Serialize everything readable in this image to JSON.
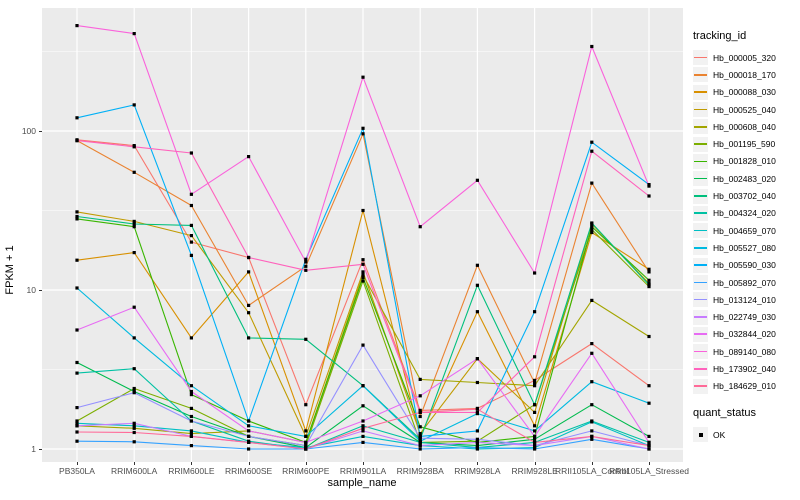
{
  "chart_data": {
    "type": "line",
    "title": "",
    "xlabel": "sample_name",
    "ylabel": "FPKM + 1",
    "y_scale": "log10",
    "y_ticks": [
      1,
      10,
      100
    ],
    "ylim": [
      0.92,
      580
    ],
    "grid": "major+minor-white-on-grey",
    "legend_position": "right",
    "point_shape": "small-black-square",
    "categories": [
      "PB350LA",
      "RRIM600LA",
      "RRIM600LE",
      "RRIM600SE",
      "RRIM600PE",
      "RRIM901LA",
      "RRIM928BA",
      "RRIM928LA",
      "RRIM928LE",
      "RRII105LA_Control",
      "RRII105LA_Stressed"
    ],
    "series": [
      {
        "name": "Hb_000005_320",
        "color": "#F8766D",
        "values": [
          88,
          81,
          20,
          16,
          1.9,
          15.5,
          1.75,
          1.8,
          2.7,
          4.6,
          2.5
        ]
      },
      {
        "name": "Hb_000018_170",
        "color": "#EA8331",
        "values": [
          87,
          55,
          34,
          8,
          14.1,
          96,
          1.6,
          14.3,
          2.6,
          47,
          13
        ]
      },
      {
        "name": "Hb_000088_030",
        "color": "#D89000",
        "values": [
          15.4,
          17.2,
          5,
          13,
          1.3,
          31.6,
          1.2,
          7.3,
          1.4,
          23,
          13.5
        ]
      },
      {
        "name": "Hb_000525_040",
        "color": "#C09B00",
        "values": [
          31,
          27,
          22,
          7.2,
          1.2,
          13,
          1.25,
          3.7,
          1.7,
          26,
          11
        ]
      },
      {
        "name": "Hb_000608_040",
        "color": "#A3A500",
        "values": [
          1.4,
          1.35,
          1.25,
          1.3,
          1.1,
          12.4,
          2.74,
          2.62,
          2.5,
          8.6,
          5.1
        ]
      },
      {
        "name": "Hb_001195_590",
        "color": "#7CAE00",
        "values": [
          1.5,
          2.4,
          1.8,
          1.2,
          1.05,
          11.4,
          1.1,
          1.12,
          1.9,
          24,
          10.5
        ]
      },
      {
        "name": "Hb_001828_010",
        "color": "#39B600",
        "values": [
          28,
          25,
          2.2,
          1.5,
          1.1,
          12,
          1.38,
          1.1,
          1.2,
          25,
          11.5
        ]
      },
      {
        "name": "Hb_002483_020",
        "color": "#00BB4E",
        "values": [
          3.5,
          2.3,
          1.6,
          1.2,
          1.02,
          1.87,
          1.1,
          1.05,
          1.15,
          1.9,
          1.2
        ]
      },
      {
        "name": "Hb_003702_040",
        "color": "#00BF7D",
        "values": [
          29,
          26,
          25.5,
          5,
          4.9,
          2.5,
          1.15,
          10.7,
          1.9,
          26.4,
          10.8
        ]
      },
      {
        "name": "Hb_004324_020",
        "color": "#00C1A3",
        "values": [
          3.0,
          3.2,
          1.5,
          1.12,
          1.0,
          1.4,
          1.1,
          1.02,
          1.1,
          1.5,
          1.1
        ]
      },
      {
        "name": "Hb_004659_070",
        "color": "#00BFC4",
        "values": [
          1.45,
          1.4,
          1.3,
          1.1,
          1.02,
          1.2,
          1.05,
          1.0,
          1.02,
          1.48,
          1.05
        ]
      },
      {
        "name": "Hb_005527_080",
        "color": "#00BAE0",
        "values": [
          10.3,
          5,
          2.5,
          1.4,
          1.2,
          2.5,
          1.12,
          1.67,
          1.3,
          2.65,
          1.94
        ]
      },
      {
        "name": "Hb_005590_030",
        "color": "#00B0F6",
        "values": [
          121,
          146,
          16.5,
          1.5,
          15.6,
          104,
          1.2,
          1.3,
          7.3,
          85,
          46
        ]
      },
      {
        "name": "Hb_005892_070",
        "color": "#35A2FF",
        "values": [
          1.12,
          1.11,
          1.05,
          1.0,
          1.0,
          1.1,
          1.0,
          1.02,
          1.0,
          1.15,
          1.0
        ]
      },
      {
        "name": "Hb_013124_010",
        "color": "#9590FF",
        "values": [
          1.82,
          2.26,
          1.5,
          1.2,
          1.05,
          4.5,
          1.17,
          1.15,
          1.05,
          1.3,
          1.05
        ]
      },
      {
        "name": "Hb_022749_030",
        "color": "#C77CFF",
        "values": [
          1.4,
          1.45,
          1.2,
          1.1,
          1.0,
          1.3,
          1.05,
          1.1,
          1.05,
          1.2,
          1.0
        ]
      },
      {
        "name": "Hb_032844_020",
        "color": "#E76BF3",
        "values": [
          5.6,
          7.8,
          2.3,
          1.3,
          1.1,
          1.5,
          2.16,
          3.7,
          1.2,
          4.0,
          1.1
        ]
      },
      {
        "name": "Hb_089140_080",
        "color": "#FA62DB",
        "values": [
          460,
          410,
          40,
          69,
          15,
          218,
          25,
          49,
          12.8,
          340,
          45
        ]
      },
      {
        "name": "Hb_173902_040",
        "color": "#FF62BC",
        "values": [
          87,
          79.5,
          72.7,
          16,
          13.3,
          14.5,
          1.7,
          1.7,
          3.8,
          74.6,
          39
        ]
      },
      {
        "name": "Hb_184629_010",
        "color": "#FF6A98",
        "values": [
          1.28,
          1.27,
          1.2,
          1.1,
          1.0,
          1.35,
          1.7,
          1.78,
          1.1,
          1.2,
          1.05
        ]
      }
    ]
  },
  "legend": {
    "title": "tracking_id"
  },
  "quant_legend": {
    "title": "quant_status",
    "items": [
      {
        "label": "OK",
        "shape": "black-square"
      }
    ]
  },
  "panel": {
    "bg": "#EBEBEB",
    "grid_color": "#FFFFFF",
    "tick_color": "#333333",
    "tick_label_color": "#4D4D4D"
  }
}
